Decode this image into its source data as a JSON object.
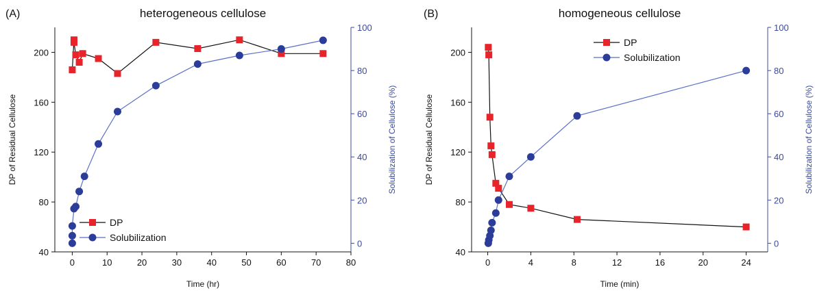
{
  "chart_data": [
    {
      "type": "line",
      "panel_label": "(A)",
      "title": "heterogeneous cellulose",
      "xlabel": "Time (hr)",
      "ylabel_left": "DP of Residual Cellulose",
      "ylabel_right": "Solubilization of Cellulose (%)",
      "xlim": [
        -5,
        80
      ],
      "xticks": [
        0,
        10,
        20,
        30,
        40,
        50,
        60,
        70,
        80
      ],
      "ylim_left": [
        40,
        220
      ],
      "yticks_left": [
        40,
        80,
        120,
        160,
        200
      ],
      "ylim_right": [
        -4,
        100
      ],
      "yticks_right": [
        0,
        20,
        40,
        60,
        80,
        100
      ],
      "legend_position": "bottom-left",
      "series": [
        {
          "name": "DP",
          "axis": "left",
          "marker": "square",
          "color": "#e8232a",
          "line_color": "#111111",
          "x": [
            0,
            0.5,
            0.5,
            1,
            2,
            3,
            7.5,
            13,
            24,
            36,
            48,
            60,
            72
          ],
          "y": [
            186,
            210,
            208,
            198,
            192,
            199,
            195,
            183,
            208,
            203,
            210,
            199,
            199
          ]
        },
        {
          "name": "Solubilization",
          "axis": "right",
          "marker": "circle",
          "color": "#2b3d98",
          "line_color": "#5a6fc8",
          "x": [
            0,
            0,
            0,
            0.5,
            1,
            2,
            3.5,
            7.5,
            13,
            24,
            36,
            48,
            60,
            72
          ],
          "y": [
            0,
            3.5,
            8,
            16,
            17,
            24,
            31,
            46,
            61,
            73,
            83,
            87,
            90,
            94
          ]
        }
      ]
    },
    {
      "type": "line",
      "panel_label": "(B)",
      "title": "homogeneous cellulose",
      "xlabel": "Time (min)",
      "ylabel_left": "DP of Residual Cellulose",
      "ylabel_right": "Solubilization of Cellulose (%)",
      "xlim": [
        -1.5,
        26
      ],
      "xticks": [
        0,
        4,
        8,
        12,
        16,
        20,
        24
      ],
      "ylim_left": [
        40,
        220
      ],
      "yticks_left": [
        40,
        80,
        120,
        160,
        200
      ],
      "ylim_right": [
        -4,
        100
      ],
      "yticks_right": [
        0,
        20,
        40,
        60,
        80,
        100
      ],
      "legend_position": "top-center",
      "series": [
        {
          "name": "DP",
          "axis": "left",
          "marker": "square",
          "color": "#e8232a",
          "line_color": "#111111",
          "x": [
            0.05,
            0.1,
            0.2,
            0.3,
            0.4,
            0.75,
            1.0,
            2.0,
            4.0,
            8.3,
            24
          ],
          "y": [
            204,
            198,
            148,
            125,
            118,
            95,
            91,
            78,
            75,
            66,
            60
          ]
        },
        {
          "name": "Solubilization",
          "axis": "right",
          "marker": "circle",
          "color": "#2b3d98",
          "line_color": "#5a6fc8",
          "x": [
            0.05,
            0.1,
            0.2,
            0.3,
            0.4,
            0.75,
            1.0,
            2.0,
            4.0,
            8.3,
            24
          ],
          "y": [
            0,
            1.5,
            3.5,
            6,
            9.5,
            14,
            20,
            31,
            40,
            59,
            80
          ]
        }
      ]
    }
  ]
}
